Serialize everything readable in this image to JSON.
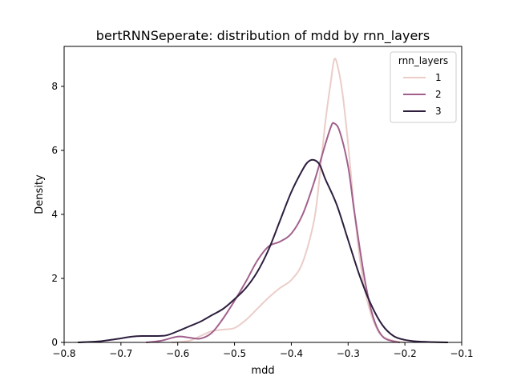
{
  "chart_data": {
    "type": "line",
    "title": "bertRNNSeperate: distribution of mdd by rnn_layers",
    "xlabel": "mdd",
    "ylabel": "Density",
    "xlim": [
      -0.8,
      -0.1
    ],
    "ylim": [
      0,
      9.25
    ],
    "x_ticks": [
      -0.8,
      -0.7,
      -0.6,
      -0.5,
      -0.4,
      -0.3,
      -0.2,
      -0.1
    ],
    "x_tick_labels": [
      "−0.8",
      "−0.7",
      "−0.6",
      "−0.5",
      "−0.4",
      "−0.3",
      "−0.2",
      "−0.1"
    ],
    "y_ticks": [
      0,
      2,
      4,
      6,
      8
    ],
    "y_tick_labels": [
      "0",
      "2",
      "4",
      "6",
      "8"
    ],
    "grid": false,
    "legend": {
      "title": "rnn_layers",
      "placement": "top-right"
    },
    "series": [
      {
        "name": "1",
        "color": "#ebcdc8",
        "points": [
          [
            -0.61,
            0.0
          ],
          [
            -0.58,
            0.05
          ],
          [
            -0.56,
            0.2
          ],
          [
            -0.54,
            0.35
          ],
          [
            -0.52,
            0.4
          ],
          [
            -0.5,
            0.45
          ],
          [
            -0.48,
            0.7
          ],
          [
            -0.46,
            1.05
          ],
          [
            -0.44,
            1.4
          ],
          [
            -0.42,
            1.7
          ],
          [
            -0.4,
            1.95
          ],
          [
            -0.38,
            2.5
          ],
          [
            -0.36,
            3.8
          ],
          [
            -0.35,
            5.2
          ],
          [
            -0.34,
            6.9
          ],
          [
            -0.33,
            8.2
          ],
          [
            -0.325,
            8.8
          ],
          [
            -0.32,
            8.75
          ],
          [
            -0.31,
            7.8
          ],
          [
            -0.3,
            6.2
          ],
          [
            -0.29,
            4.3
          ],
          [
            -0.28,
            2.7
          ],
          [
            -0.27,
            1.6
          ],
          [
            -0.26,
            0.9
          ],
          [
            -0.25,
            0.45
          ],
          [
            -0.24,
            0.2
          ],
          [
            -0.22,
            0.05
          ],
          [
            -0.2,
            0.0
          ]
        ]
      },
      {
        "name": "2",
        "color": "#a1608c",
        "points": [
          [
            -0.655,
            0.0
          ],
          [
            -0.63,
            0.05
          ],
          [
            -0.6,
            0.18
          ],
          [
            -0.58,
            0.15
          ],
          [
            -0.56,
            0.12
          ],
          [
            -0.54,
            0.3
          ],
          [
            -0.52,
            0.75
          ],
          [
            -0.5,
            1.3
          ],
          [
            -0.48,
            1.9
          ],
          [
            -0.46,
            2.55
          ],
          [
            -0.44,
            3.0
          ],
          [
            -0.42,
            3.15
          ],
          [
            -0.4,
            3.4
          ],
          [
            -0.38,
            4.0
          ],
          [
            -0.36,
            5.0
          ],
          [
            -0.34,
            6.2
          ],
          [
            -0.33,
            6.75
          ],
          [
            -0.325,
            6.85
          ],
          [
            -0.315,
            6.6
          ],
          [
            -0.3,
            5.5
          ],
          [
            -0.29,
            4.2
          ],
          [
            -0.28,
            3.0
          ],
          [
            -0.27,
            1.9
          ],
          [
            -0.26,
            1.05
          ],
          [
            -0.25,
            0.5
          ],
          [
            -0.24,
            0.2
          ],
          [
            -0.23,
            0.08
          ],
          [
            -0.21,
            0.0
          ]
        ]
      },
      {
        "name": "3",
        "color": "#2d1e3e",
        "points": [
          [
            -0.775,
            0.0
          ],
          [
            -0.74,
            0.03
          ],
          [
            -0.71,
            0.1
          ],
          [
            -0.68,
            0.18
          ],
          [
            -0.66,
            0.2
          ],
          [
            -0.64,
            0.2
          ],
          [
            -0.62,
            0.22
          ],
          [
            -0.6,
            0.35
          ],
          [
            -0.58,
            0.5
          ],
          [
            -0.56,
            0.65
          ],
          [
            -0.54,
            0.85
          ],
          [
            -0.52,
            1.05
          ],
          [
            -0.5,
            1.35
          ],
          [
            -0.48,
            1.7
          ],
          [
            -0.46,
            2.2
          ],
          [
            -0.44,
            2.9
          ],
          [
            -0.42,
            3.8
          ],
          [
            -0.4,
            4.7
          ],
          [
            -0.38,
            5.4
          ],
          [
            -0.37,
            5.65
          ],
          [
            -0.36,
            5.7
          ],
          [
            -0.35,
            5.55
          ],
          [
            -0.34,
            5.1
          ],
          [
            -0.32,
            4.3
          ],
          [
            -0.3,
            3.2
          ],
          [
            -0.28,
            2.1
          ],
          [
            -0.26,
            1.2
          ],
          [
            -0.24,
            0.55
          ],
          [
            -0.22,
            0.2
          ],
          [
            -0.2,
            0.08
          ],
          [
            -0.18,
            0.03
          ],
          [
            -0.15,
            0.01
          ],
          [
            -0.125,
            0.0
          ]
        ]
      }
    ]
  }
}
